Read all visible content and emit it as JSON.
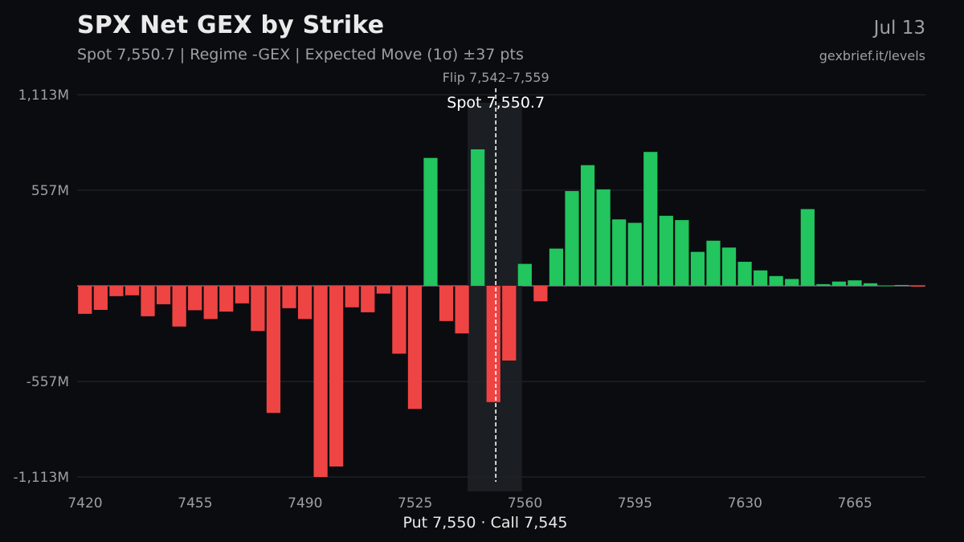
{
  "header": {
    "title": "SPX Net GEX by Strike",
    "subtitle": "Spot 7,550.7 | Regime -GEX | Expected Move (1σ) ±37 pts",
    "date": "Jul 13",
    "source": "gexbrief.it/levels"
  },
  "annotations": {
    "flip_label": "Flip 7,542–7,559",
    "spot_label": "Spot 7,550.7",
    "walls_label": "Put 7,550 · Call 7,545"
  },
  "colors": {
    "background": "#0b0c10",
    "positive": "#22c55e",
    "negative": "#ef4444",
    "grid": "#262a33",
    "axis_text": "#9aa0a6",
    "flip_band": "#1f2226",
    "spot_line": "#ffffff"
  },
  "chart_data": {
    "type": "bar",
    "title": "SPX Net GEX by Strike",
    "xlabel": "",
    "ylabel": "",
    "units": "M",
    "xlim": [
      7420,
      7690
    ],
    "ylim": [
      -1113,
      1113
    ],
    "yticks": [
      1113,
      557,
      -557,
      -1113
    ],
    "ytick_labels": [
      "1,113M",
      "557M",
      "-557M",
      "-1,113M"
    ],
    "xticks": [
      7420,
      7455,
      7490,
      7525,
      7560,
      7595,
      7630,
      7665
    ],
    "xtick_labels": [
      "7420",
      "7455",
      "7490",
      "7525",
      "7560",
      "7595",
      "7630",
      "7665"
    ],
    "grid": true,
    "bar_width": 5,
    "spot": 7550.7,
    "flip_range": [
      7542,
      7559
    ],
    "strikes": [
      7420,
      7425,
      7430,
      7435,
      7440,
      7445,
      7450,
      7455,
      7460,
      7465,
      7470,
      7475,
      7480,
      7485,
      7490,
      7495,
      7500,
      7505,
      7510,
      7515,
      7520,
      7525,
      7530,
      7535,
      7540,
      7545,
      7550,
      7555,
      7560,
      7565,
      7570,
      7575,
      7580,
      7585,
      7590,
      7595,
      7600,
      7605,
      7610,
      7615,
      7620,
      7625,
      7630,
      7635,
      7640,
      7645,
      7650,
      7655,
      7660,
      7665,
      7670,
      7675,
      7680,
      7685
    ],
    "values": [
      -163,
      -140,
      -60,
      -55,
      -177,
      -107,
      -237,
      -142,
      -193,
      -150,
      -102,
      -263,
      -740,
      -130,
      -193,
      -1113,
      -1052,
      -125,
      -154,
      -45,
      -395,
      -717,
      745,
      -205,
      -277,
      795,
      -677,
      -435,
      128,
      -90,
      217,
      552,
      703,
      562,
      387,
      367,
      780,
      408,
      383,
      198,
      263,
      223,
      140,
      90,
      57,
      40,
      447,
      10,
      25,
      32,
      15,
      2,
      5,
      -3
    ]
  }
}
